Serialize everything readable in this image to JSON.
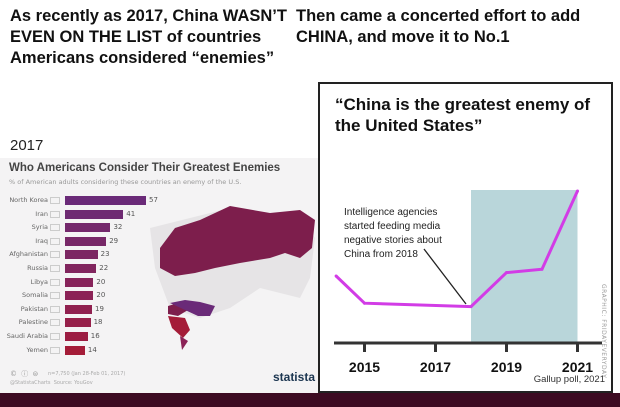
{
  "headline_left": "As recently as 2017, China WASN’T EVEN ON THE LIST of countries Americans considered “enemies”",
  "headline_right": "Then came a concerted effort to add CHINA, and move it to No.1",
  "year_label": "2017",
  "chart_data": [
    {
      "type": "bar",
      "title": "Who Americans Consider Their Greatest Enemies",
      "subtitle": "% of American adults considering these countries an enemy of the U.S.",
      "categories": [
        "North Korea",
        "Iran",
        "Syria",
        "Iraq",
        "Afghanistan",
        "Russia",
        "Libya",
        "Somalia",
        "Pakistan",
        "Palestine",
        "Saudi Arabia",
        "Yemen"
      ],
      "values": [
        57,
        41,
        32,
        29,
        23,
        22,
        20,
        20,
        19,
        18,
        16,
        14
      ],
      "colors": [
        "#6a2a78",
        "#6e2a72",
        "#74286c",
        "#782868",
        "#7c2763",
        "#81255e",
        "#87235a",
        "#8b2256",
        "#90204f",
        "#96204a",
        "#9c1d42",
        "#a41c38"
      ],
      "footnote": "n=7,750 (Jan 28-Feb 01, 2017)",
      "source": "Source: YouGov",
      "handle": "@StatistaCharts",
      "license_icons": "© ⓘ ⊜",
      "logo": "statista"
    },
    {
      "type": "line",
      "title": "“China is the greatest enemy of the United States”",
      "x": [
        2014.2,
        2015,
        2018,
        2019,
        2020,
        2021
      ],
      "y": [
        20,
        12,
        11,
        21,
        22,
        45
      ],
      "ylim": [
        0,
        50
      ],
      "xlim": [
        2014,
        2021.6
      ],
      "xticks": [
        "2015",
        "2017",
        "2019",
        "2021"
      ],
      "xtick_values": [
        2015,
        2017,
        2019,
        2021
      ],
      "shaded_range": [
        2018,
        2021
      ],
      "line_color": "#d23ce6",
      "shade_color": "#b9d6da",
      "annotation": [
        "Intelligence agencies",
        "started feeding media",
        "negative stories about",
        "China from 2018"
      ],
      "source": "Gallup poll, 2021",
      "credit": "GRAPHIC: FRIDAYEVERYDAY"
    }
  ]
}
